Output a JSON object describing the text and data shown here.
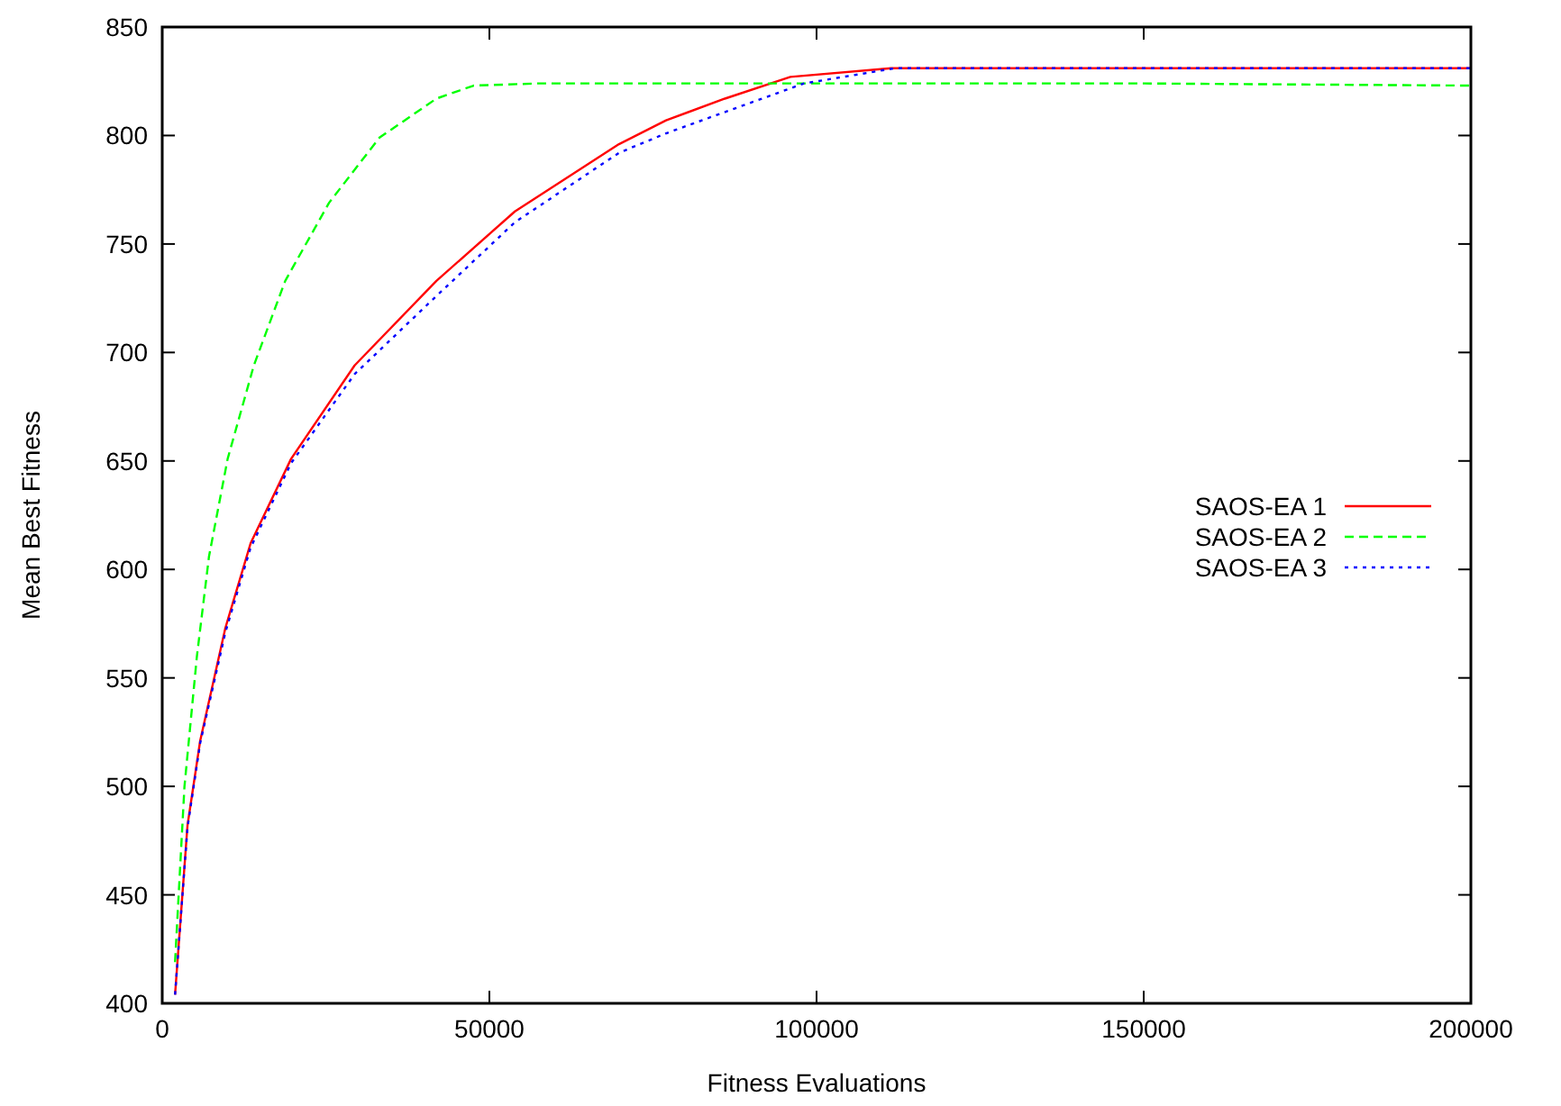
{
  "chart_data": {
    "type": "line",
    "xlabel": "Fitness Evaluations",
    "ylabel": "Mean Best Fitness",
    "xlim": [
      0,
      200000
    ],
    "ylim": [
      400,
      850
    ],
    "xticks": [
      0,
      50000,
      100000,
      150000,
      200000
    ],
    "yticks": [
      400,
      450,
      500,
      550,
      600,
      650,
      700,
      750,
      800,
      850
    ],
    "grid": false,
    "legend": "right",
    "series": [
      {
        "name": "SAOS-EA 1",
        "color": "#ff0000",
        "line_style": "solid",
        "x": [
          1960,
          3860,
          5800,
          9650,
          13500,
          19700,
          29400,
          41900,
          53900,
          69800,
          77000,
          86000,
          96000,
          111400,
          130000,
          160000,
          200000
        ],
        "values": [
          404,
          482,
          521,
          573,
          612,
          651,
          694,
          733,
          765,
          796,
          807,
          817,
          827,
          831,
          831,
          831,
          831
        ]
      },
      {
        "name": "SAOS-EA 2",
        "color": "#00ff00",
        "line_style": "dashed",
        "x": [
          1960,
          3400,
          5300,
          7150,
          10000,
          14000,
          18800,
          25500,
          33200,
          41900,
          47600,
          57300,
          100000,
          150000,
          200000
        ],
        "values": [
          419,
          500,
          560,
          606,
          651,
          694,
          733,
          769,
          799,
          817,
          823,
          824,
          824,
          824,
          823
        ]
      },
      {
        "name": "SAOS-EA 3",
        "color": "#0000ff",
        "line_style": "dotted",
        "x": [
          1960,
          3860,
          5800,
          9650,
          13500,
          19700,
          29400,
          41900,
          53900,
          69800,
          77000,
          88000,
          98100,
          112000,
          130000,
          160000,
          200000
        ],
        "values": [
          404,
          481,
          520,
          571,
          610,
          649,
          690,
          726,
          760,
          792,
          801,
          813,
          824,
          831,
          831,
          831,
          831
        ]
      }
    ]
  }
}
